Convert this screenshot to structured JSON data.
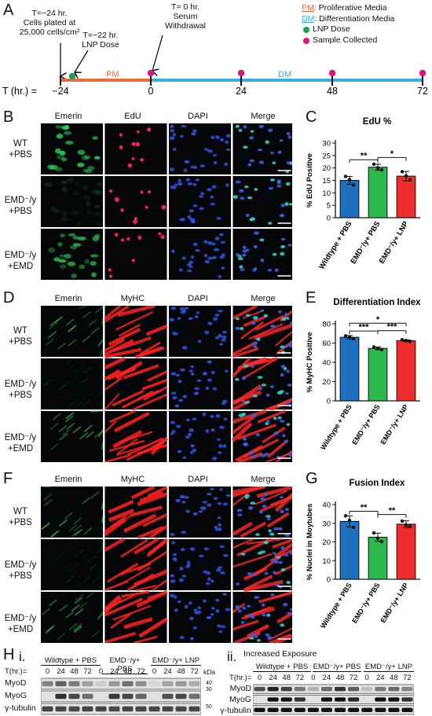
{
  "panelA": {
    "label": "A",
    "ann_m24_l1": "T=−24 hr.",
    "ann_m24_l2": "Cells plated at",
    "ann_m24_l3": "25,000 cells/cm²",
    "ann_m22_l1": "T=−22 hr.",
    "ann_m22_l2": "LNP Dose",
    "ann_0_l1": "T= 0 hr.",
    "ann_0_l2": "Serum",
    "ann_0_l3": "Withdrawal",
    "legend_pm_abbr": "PM",
    "legend_pm_text": ": Proliferative Media",
    "legend_dm_abbr": "DM",
    "legend_dm_text": ": Differentiation Media",
    "legend_lnp": "LNP Dose",
    "legend_sample": "Sample Collected",
    "axis_label": "T (hr.) =",
    "pm_label": "PM",
    "dm_label": "DM",
    "ticks": [
      "−24",
      "0",
      "24",
      "48",
      "72"
    ],
    "colors": {
      "pm": "#ef6a3b",
      "dm": "#34b1e3",
      "lnp": "#1e9e52",
      "sample": "#e0147f"
    }
  },
  "panelB": {
    "label": "B",
    "columns": [
      "Emerin",
      "EdU",
      "DAPI",
      "Merge"
    ],
    "rows": [
      {
        "l1": "WT",
        "l2": "+PBS"
      },
      {
        "l1": "EMD⁻/y",
        "l2": "+PBS"
      },
      {
        "l1": "EMD⁻/y",
        "l2": "+EMD"
      }
    ]
  },
  "panelD": {
    "label": "D",
    "columns": [
      "Emerin",
      "MyHC",
      "DAPI",
      "Merge"
    ],
    "rows": [
      {
        "l1": "WT",
        "l2": "+PBS"
      },
      {
        "l1": "EMD⁻/y",
        "l2": "+PBS"
      },
      {
        "l1": "EMD⁻/y",
        "l2": "+EMD"
      }
    ]
  },
  "panelF": {
    "label": "F",
    "columns": [
      "Emerin",
      "MyHC",
      "DAPI",
      "Merge"
    ],
    "rows": [
      {
        "l1": "WT",
        "l2": "+PBS"
      },
      {
        "l1": "EMD⁻/y",
        "l2": "+PBS"
      },
      {
        "l1": "EMD⁻/y",
        "l2": "+EMD"
      }
    ]
  },
  "chart_data": [
    {
      "panel": "C",
      "type": "bar",
      "title": "EdU %",
      "ylabel": "% EdU Positive",
      "categories": [
        "Wildtype + PBS",
        "EMD⁻/y+ PBS",
        "EMD⁻/y+ LNP"
      ],
      "values": [
        15,
        20.3,
        16.7
      ],
      "errors": [
        1.6,
        1.2,
        1.9
      ],
      "points": [
        [
          16.6,
          15.3,
          13.2
        ],
        [
          21.5,
          20.0,
          19.2
        ],
        [
          18.5,
          16.8,
          15.2
        ]
      ],
      "colors": [
        "#1f6fbf",
        "#2cb84b",
        "#ef2b2b"
      ],
      "ylim": [
        0,
        30
      ],
      "yticks": [
        0,
        5,
        10,
        15,
        20,
        25,
        30
      ],
      "significance": [
        {
          "from": 0,
          "to": 1,
          "label": "**"
        },
        {
          "from": 1,
          "to": 2,
          "label": "*"
        }
      ]
    },
    {
      "panel": "E",
      "type": "bar",
      "title": "Differentiation Index",
      "ylabel": "% MyHC Positive",
      "categories": [
        "Wildtype + PBS",
        "EMD⁻/y+ PBS",
        "EMD⁻/y+ LNP"
      ],
      "values": [
        66,
        54.5,
        62.5
      ],
      "errors": [
        1.8,
        1.4,
        1.0
      ],
      "points": [
        [
          67.5,
          66.2,
          64.5
        ],
        [
          56.0,
          54.3,
          53.2
        ],
        [
          63.5,
          62.6,
          61.8
        ]
      ],
      "colors": [
        "#1f6fbf",
        "#2cb84b",
        "#ef2b2b"
      ],
      "ylim": [
        0,
        80
      ],
      "yticks": [
        0,
        20,
        40,
        60,
        80
      ],
      "significance": [
        {
          "from": 0,
          "to": 1,
          "label": "***"
        },
        {
          "from": 0,
          "to": 2,
          "label": "*"
        },
        {
          "from": 1,
          "to": 2,
          "label": "***"
        }
      ]
    },
    {
      "panel": "G",
      "type": "bar",
      "title": "Fusion Index",
      "ylabel": "% Nuclei in Moytubes",
      "categories": [
        "Wildtype + PBS",
        "EMD⁻/y+ PBS",
        "EMD⁻/y+ LNP"
      ],
      "values": [
        31,
        22.5,
        29.5
      ],
      "errors": [
        3.0,
        2.2,
        1.8
      ],
      "points": [
        [
          34.0,
          31.5,
          27.8
        ],
        [
          24.8,
          22.0,
          20.3
        ],
        [
          31.2,
          29.0,
          28.3
        ]
      ],
      "colors": [
        "#1f6fbf",
        "#2cb84b",
        "#ef2b2b"
      ],
      "ylim": [
        0,
        40
      ],
      "yticks": [
        0,
        10,
        20,
        30,
        40
      ],
      "significance": [
        {
          "from": 0,
          "to": 1,
          "label": "**"
        },
        {
          "from": 1,
          "to": 2,
          "label": "**"
        }
      ]
    }
  ],
  "panelH": {
    "label": "H",
    "sub_i": "i.",
    "sub_ii": "ii.",
    "increased_exposure": "Increased Exposure",
    "groups": [
      "Wildtype + PBS",
      "EMD⁻/y+ PBS",
      "EMD⁻/y+ LNP"
    ],
    "t_label": "T(hr.)=",
    "times": [
      "0",
      "24",
      "48",
      "72"
    ],
    "kda_label": "kDa",
    "markers": [
      "40",
      "30",
      "50"
    ],
    "bands": [
      "MyoD",
      "MyoG",
      "γ-tubulin"
    ]
  }
}
